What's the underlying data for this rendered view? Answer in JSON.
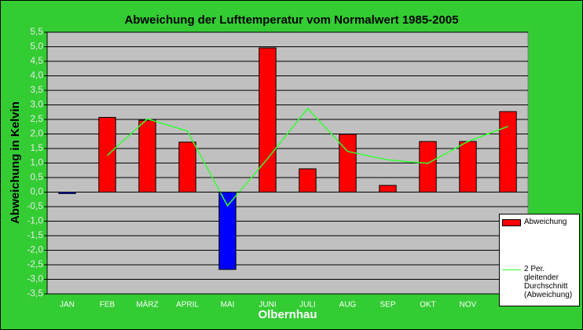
{
  "chart_data": {
    "type": "bar",
    "title": "Abweichung der Lufttemperatur vom Normalwert 1985-2005",
    "x_label": "Olbernhau",
    "y_label": "Abweichung in Kelvin",
    "categories": [
      "JAN",
      "FEB",
      "MÄRZ",
      "APRIL",
      "MAI",
      "JUNI",
      "JULI",
      "AUG",
      "SEP",
      "OKT",
      "NOV",
      null
    ],
    "series": [
      {
        "name": "Abweichung",
        "type": "bar",
        "color": "#ff0000",
        "negative_color": "#0000ff",
        "values": [
          -0.05,
          2.57,
          2.47,
          1.72,
          -2.66,
          4.96,
          0.8,
          1.99,
          0.23,
          1.74,
          1.74,
          2.77
        ]
      },
      {
        "name": "2 Per. gleitender Durchschnitt (Abweichung)",
        "type": "line",
        "color": "#33ff33",
        "values": [
          null,
          1.26,
          2.52,
          2.1,
          -0.47,
          1.15,
          2.88,
          1.4,
          1.11,
          0.99,
          1.74,
          2.26
        ]
      }
    ],
    "ylim": [
      -3.5,
      5.5
    ],
    "yticks": [
      {
        "value": -3.5,
        "label": "-3,5"
      },
      {
        "value": -3,
        "label": "-3,0"
      },
      {
        "value": -2.5,
        "label": "-2,5"
      },
      {
        "value": -2,
        "label": "-2,0"
      },
      {
        "value": -1.5,
        "label": "-1,5"
      },
      {
        "value": -1,
        "label": "-1,0"
      },
      {
        "value": -0.5,
        "label": "-0,5"
      },
      {
        "value": 0,
        "label": "0,0"
      },
      {
        "value": 0.5,
        "label": "0,5"
      },
      {
        "value": 1,
        "label": "1,0"
      },
      {
        "value": 1.5,
        "label": "1,5"
      },
      {
        "value": 2,
        "label": "2,0"
      },
      {
        "value": 2.5,
        "label": "2,5"
      },
      {
        "value": 3,
        "label": "3,0"
      },
      {
        "value": 3.5,
        "label": "3,5"
      },
      {
        "value": 4,
        "label": "4,0"
      },
      {
        "value": 4.5,
        "label": "4,5"
      },
      {
        "value": 5,
        "label": "5,0"
      },
      {
        "value": 5.5,
        "label": "5,5"
      }
    ],
    "grid": true,
    "legend": "right"
  }
}
